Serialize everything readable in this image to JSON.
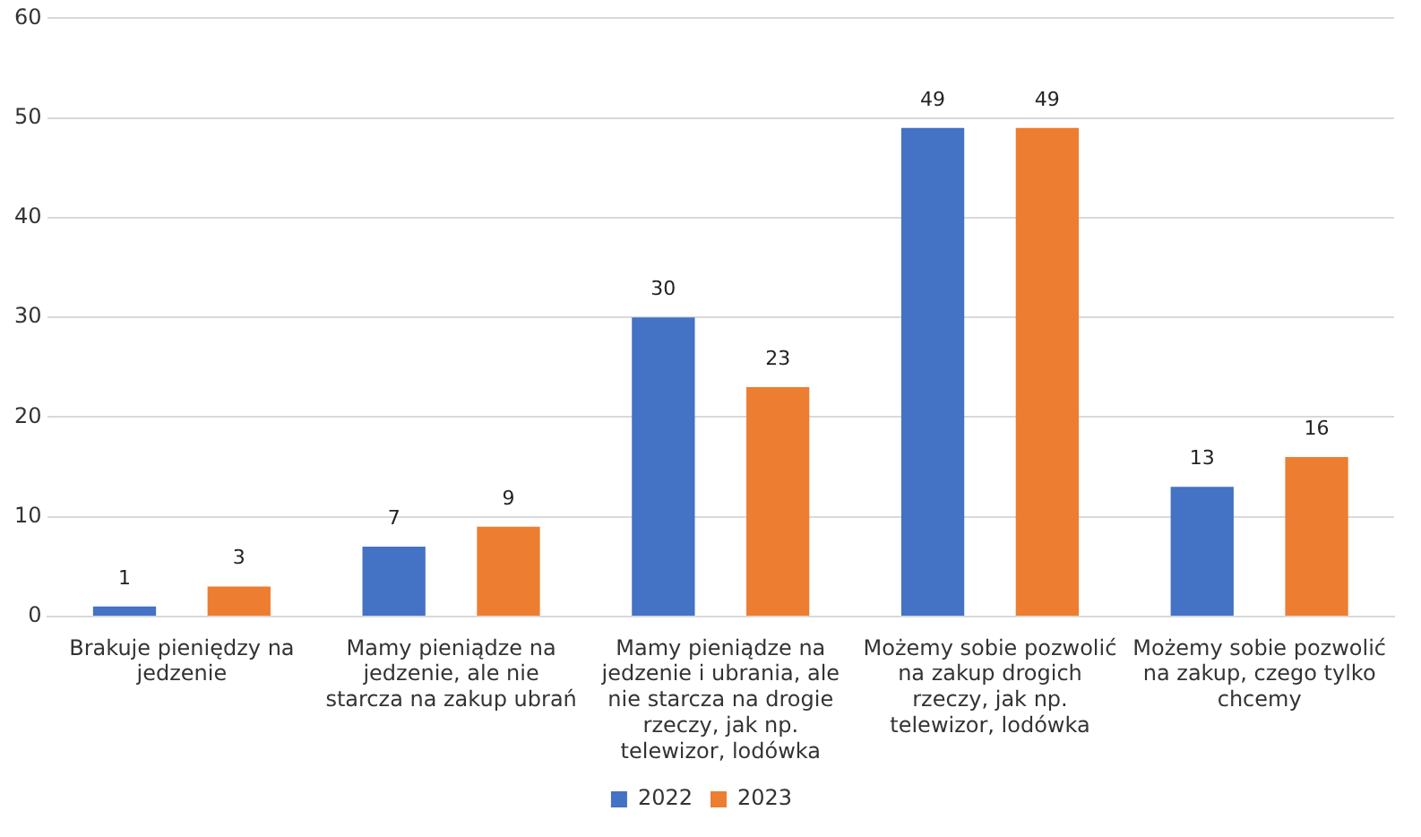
{
  "chart_data": {
    "type": "bar",
    "categories": [
      "Brakuje pieniędzy na jedzenie",
      "Mamy pieniądze na jedzenie, ale nie starcza na zakup ubrań",
      "Mamy pieniądze na jedzenie i ubrania, ale nie starcza na drogie rzeczy, jak np. telewizor, lodówka",
      "Możemy sobie pozwolić na zakup drogich rzeczy, jak np. telewizor, lodówka",
      "Możemy sobie pozwolić na zakup, czego tylko chcemy"
    ],
    "series": [
      {
        "name": "2022",
        "color": "#4472c4",
        "values": [
          1,
          7,
          30,
          49,
          13
        ]
      },
      {
        "name": "2023",
        "color": "#ed7d31",
        "values": [
          3,
          9,
          23,
          49,
          16
        ]
      }
    ],
    "ylim": [
      0,
      60
    ],
    "yticks": [
      0,
      10,
      20,
      30,
      40,
      50,
      60
    ],
    "grid": "y",
    "legend": "bottom",
    "data_labels": true
  }
}
